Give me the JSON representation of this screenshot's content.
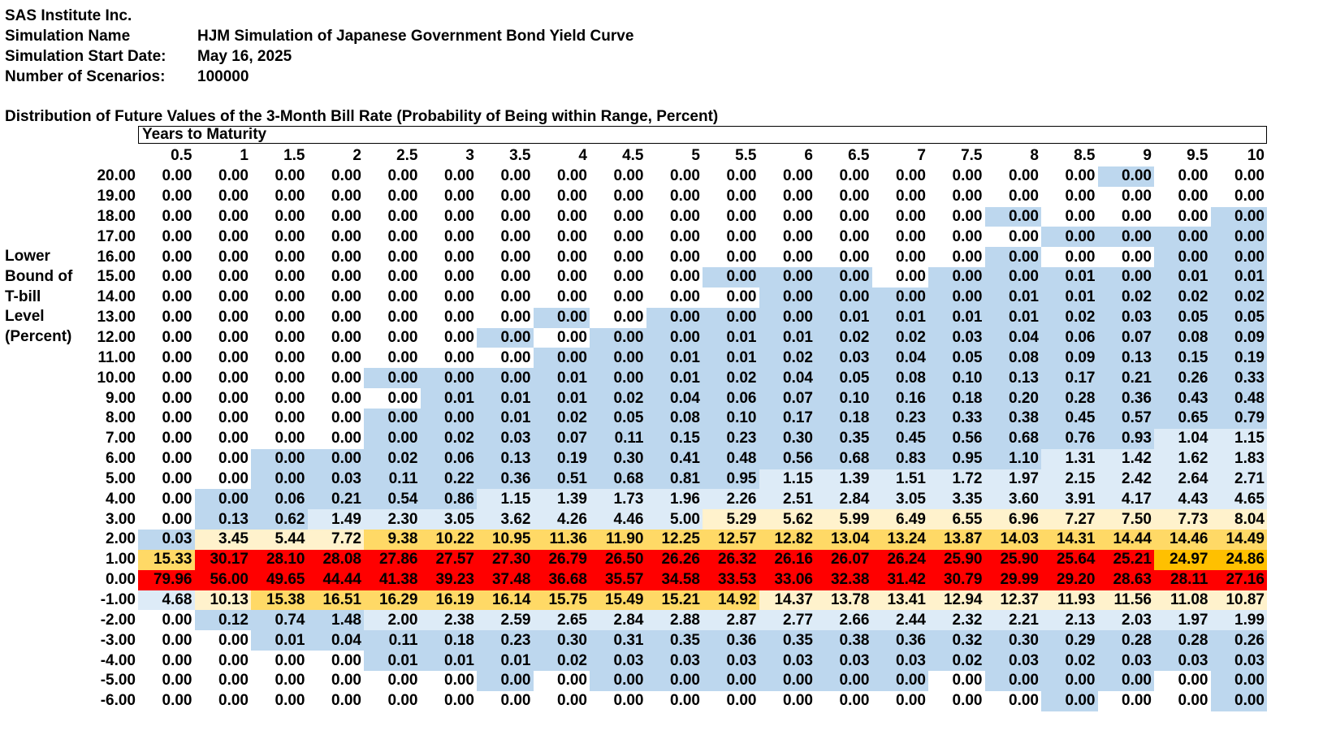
{
  "header": {
    "company": "SAS Institute Inc.",
    "sim_name_label": "Simulation Name",
    "sim_name": "HJM Simulation of Japanese Government Bond Yield Curve",
    "start_date_label": "Simulation Start Date:",
    "start_date": "May 16, 2025",
    "scenarios_label": "Number of Scenarios:",
    "scenarios": "100000"
  },
  "table_title": "Distribution of Future Values of the 3-Month Bill Rate (Probability of Being within Range, Percent)",
  "years_label": "Years to Maturity",
  "side_label": [
    "Lower",
    "Bound of",
    "T-bill",
    "Level",
    "(Percent)"
  ],
  "colors": {
    "blue": "#bdd7ee",
    "lightblue": "#ddebf7",
    "paleyellow": "#fff2cc",
    "gold": "#ffd966",
    "orange": "#ffc000",
    "red": "#ff0000",
    "white": "#ffffff"
  },
  "chart_data": {
    "type": "table",
    "columns": [
      "0.5",
      "1",
      "1.5",
      "2",
      "2.5",
      "3",
      "3.5",
      "4",
      "4.5",
      "5",
      "5.5",
      "6",
      "6.5",
      "7",
      "7.5",
      "8",
      "8.5",
      "9",
      "9.5",
      "10"
    ],
    "rows": [
      {
        "label": "20.00",
        "values": [
          "0.00",
          "0.00",
          "0.00",
          "0.00",
          "0.00",
          "0.00",
          "0.00",
          "0.00",
          "0.00",
          "0.00",
          "0.00",
          "0.00",
          "0.00",
          "0.00",
          "0.00",
          "0.00",
          "0.00",
          "0.00",
          "0.00",
          "0.00"
        ],
        "shade": "wwwwwwwwwwwwwwwwwbww"
      },
      {
        "label": "19.00",
        "values": [
          "0.00",
          "0.00",
          "0.00",
          "0.00",
          "0.00",
          "0.00",
          "0.00",
          "0.00",
          "0.00",
          "0.00",
          "0.00",
          "0.00",
          "0.00",
          "0.00",
          "0.00",
          "0.00",
          "0.00",
          "0.00",
          "0.00",
          "0.00"
        ],
        "shade": "wwwwwwwwwwwwwwwwwwww"
      },
      {
        "label": "18.00",
        "values": [
          "0.00",
          "0.00",
          "0.00",
          "0.00",
          "0.00",
          "0.00",
          "0.00",
          "0.00",
          "0.00",
          "0.00",
          "0.00",
          "0.00",
          "0.00",
          "0.00",
          "0.00",
          "0.00",
          "0.00",
          "0.00",
          "0.00",
          "0.00"
        ],
        "shade": "wwwwwwwwwwwwwwwbwwwb"
      },
      {
        "label": "17.00",
        "values": [
          "0.00",
          "0.00",
          "0.00",
          "0.00",
          "0.00",
          "0.00",
          "0.00",
          "0.00",
          "0.00",
          "0.00",
          "0.00",
          "0.00",
          "0.00",
          "0.00",
          "0.00",
          "0.00",
          "0.00",
          "0.00",
          "0.00",
          "0.00"
        ],
        "shade": "wwwwwwwwwwwwwwwwbbbb"
      },
      {
        "label": "16.00",
        "values": [
          "0.00",
          "0.00",
          "0.00",
          "0.00",
          "0.00",
          "0.00",
          "0.00",
          "0.00",
          "0.00",
          "0.00",
          "0.00",
          "0.00",
          "0.00",
          "0.00",
          "0.00",
          "0.00",
          "0.00",
          "0.00",
          "0.00",
          "0.00"
        ],
        "shade": "wwwwwwwwwwwwwwwbwwbb"
      },
      {
        "label": "15.00",
        "values": [
          "0.00",
          "0.00",
          "0.00",
          "0.00",
          "0.00",
          "0.00",
          "0.00",
          "0.00",
          "0.00",
          "0.00",
          "0.00",
          "0.00",
          "0.00",
          "0.00",
          "0.00",
          "0.00",
          "0.01",
          "0.00",
          "0.01",
          "0.01"
        ],
        "shade": "wwwwwwwwwwbbbwbbbbbb"
      },
      {
        "label": "14.00",
        "values": [
          "0.00",
          "0.00",
          "0.00",
          "0.00",
          "0.00",
          "0.00",
          "0.00",
          "0.00",
          "0.00",
          "0.00",
          "0.00",
          "0.00",
          "0.00",
          "0.00",
          "0.00",
          "0.01",
          "0.01",
          "0.02",
          "0.02",
          "0.02"
        ],
        "shade": "wwwwwwwwwwwbbbbbbbbb"
      },
      {
        "label": "13.00",
        "values": [
          "0.00",
          "0.00",
          "0.00",
          "0.00",
          "0.00",
          "0.00",
          "0.00",
          "0.00",
          "0.00",
          "0.00",
          "0.00",
          "0.00",
          "0.01",
          "0.01",
          "0.01",
          "0.01",
          "0.02",
          "0.03",
          "0.05",
          "0.05"
        ],
        "shade": "wwwwwwwbwbbbbbbbbbbb"
      },
      {
        "label": "12.00",
        "values": [
          "0.00",
          "0.00",
          "0.00",
          "0.00",
          "0.00",
          "0.00",
          "0.00",
          "0.00",
          "0.00",
          "0.00",
          "0.01",
          "0.01",
          "0.02",
          "0.02",
          "0.03",
          "0.04",
          "0.06",
          "0.07",
          "0.08",
          "0.09"
        ],
        "shade": "wwwwwwbwbbbbbbbbbbbb"
      },
      {
        "label": "11.00",
        "values": [
          "0.00",
          "0.00",
          "0.00",
          "0.00",
          "0.00",
          "0.00",
          "0.00",
          "0.00",
          "0.00",
          "0.01",
          "0.01",
          "0.02",
          "0.03",
          "0.04",
          "0.05",
          "0.08",
          "0.09",
          "0.13",
          "0.15",
          "0.19"
        ],
        "shade": "wwwwwwwbbbbbbbbbbbbb"
      },
      {
        "label": "10.00",
        "values": [
          "0.00",
          "0.00",
          "0.00",
          "0.00",
          "0.00",
          "0.00",
          "0.00",
          "0.01",
          "0.00",
          "0.01",
          "0.02",
          "0.04",
          "0.05",
          "0.08",
          "0.10",
          "0.13",
          "0.17",
          "0.21",
          "0.26",
          "0.33"
        ],
        "shade": "wwwwbbbbbbbbbbbbbbbb"
      },
      {
        "label": "9.00",
        "values": [
          "0.00",
          "0.00",
          "0.00",
          "0.00",
          "0.00",
          "0.01",
          "0.01",
          "0.01",
          "0.02",
          "0.04",
          "0.06",
          "0.07",
          "0.10",
          "0.16",
          "0.18",
          "0.20",
          "0.28",
          "0.36",
          "0.43",
          "0.48"
        ],
        "shade": "wwwwwbbbbbbbbbbbbbbb"
      },
      {
        "label": "8.00",
        "values": [
          "0.00",
          "0.00",
          "0.00",
          "0.00",
          "0.00",
          "0.00",
          "0.01",
          "0.02",
          "0.05",
          "0.08",
          "0.10",
          "0.17",
          "0.18",
          "0.23",
          "0.33",
          "0.38",
          "0.45",
          "0.57",
          "0.65",
          "0.79"
        ],
        "shade": "wwwwbbbbbbbbbbbbbbbb"
      },
      {
        "label": "7.00",
        "values": [
          "0.00",
          "0.00",
          "0.00",
          "0.00",
          "0.00",
          "0.02",
          "0.03",
          "0.07",
          "0.11",
          "0.15",
          "0.23",
          "0.30",
          "0.35",
          "0.45",
          "0.56",
          "0.68",
          "0.76",
          "0.93",
          "1.04",
          "1.15"
        ],
        "shade": "wwwwbbbbbbbbbbbbbbll"
      },
      {
        "label": "6.00",
        "values": [
          "0.00",
          "0.00",
          "0.00",
          "0.00",
          "0.02",
          "0.06",
          "0.13",
          "0.19",
          "0.30",
          "0.41",
          "0.48",
          "0.56",
          "0.68",
          "0.83",
          "0.95",
          "1.10",
          "1.31",
          "1.42",
          "1.62",
          "1.83"
        ],
        "shade": "wwbbbbbbbbbbbbbbllll"
      },
      {
        "label": "5.00",
        "values": [
          "0.00",
          "0.00",
          "0.00",
          "0.03",
          "0.11",
          "0.22",
          "0.36",
          "0.51",
          "0.68",
          "0.81",
          "0.95",
          "1.15",
          "1.39",
          "1.51",
          "1.72",
          "1.97",
          "2.15",
          "2.42",
          "2.64",
          "2.71"
        ],
        "shade": "wwbbbbbbbbblllllllll"
      },
      {
        "label": "4.00",
        "values": [
          "0.00",
          "0.00",
          "0.06",
          "0.21",
          "0.54",
          "0.86",
          "1.15",
          "1.39",
          "1.73",
          "1.96",
          "2.26",
          "2.51",
          "2.84",
          "3.05",
          "3.35",
          "3.60",
          "3.91",
          "4.17",
          "4.43",
          "4.65"
        ],
        "shade": "wbbbbbllllllllllllll"
      },
      {
        "label": "3.00",
        "values": [
          "0.00",
          "0.13",
          "0.62",
          "1.49",
          "2.30",
          "3.05",
          "3.62",
          "4.26",
          "4.46",
          "5.00",
          "5.29",
          "5.62",
          "5.99",
          "6.49",
          "6.55",
          "6.96",
          "7.27",
          "7.50",
          "7.73",
          "8.04"
        ],
        "shade": "wbblllllllpppppppppp"
      },
      {
        "label": "2.00",
        "values": [
          "0.03",
          "3.45",
          "5.44",
          "7.72",
          "9.38",
          "10.22",
          "10.95",
          "11.36",
          "11.90",
          "12.25",
          "12.57",
          "12.82",
          "13.04",
          "13.24",
          "13.87",
          "14.03",
          "14.31",
          "14.44",
          "14.46",
          "14.49"
        ],
        "shade": "bpppgggggggggggggggg"
      },
      {
        "label": "1.00",
        "values": [
          "15.33",
          "30.17",
          "28.10",
          "28.08",
          "27.86",
          "27.57",
          "27.30",
          "26.79",
          "26.50",
          "26.26",
          "26.32",
          "26.16",
          "26.07",
          "26.24",
          "25.90",
          "25.90",
          "25.64",
          "25.21",
          "24.97",
          "24.86"
        ],
        "shade": "grrrrrrrrrrrrrrrrroo"
      },
      {
        "label": "0.00",
        "values": [
          "79.96",
          "56.00",
          "49.65",
          "44.44",
          "41.38",
          "39.23",
          "37.48",
          "36.68",
          "35.57",
          "34.58",
          "33.53",
          "33.06",
          "32.38",
          "31.42",
          "30.79",
          "29.99",
          "29.20",
          "28.63",
          "28.11",
          "27.16"
        ],
        "shade": "rrrrrrrrrrrrrrrrrrrr"
      },
      {
        "label": "-1.00",
        "values": [
          "4.68",
          "10.13",
          "15.38",
          "16.51",
          "16.29",
          "16.19",
          "16.14",
          "15.75",
          "15.49",
          "15.21",
          "14.92",
          "14.37",
          "13.78",
          "13.41",
          "12.94",
          "12.37",
          "11.93",
          "11.56",
          "11.08",
          "10.87"
        ],
        "shade": "lpgggggggggppppppppp"
      },
      {
        "label": "-2.00",
        "values": [
          "0.00",
          "0.12",
          "0.74",
          "1.48",
          "2.00",
          "2.38",
          "2.59",
          "2.65",
          "2.84",
          "2.88",
          "2.87",
          "2.77",
          "2.66",
          "2.44",
          "2.32",
          "2.21",
          "2.13",
          "2.03",
          "1.97",
          "1.99"
        ],
        "shade": "wbbbllllllllllllllll"
      },
      {
        "label": "-3.00",
        "values": [
          "0.00",
          "0.00",
          "0.01",
          "0.04",
          "0.11",
          "0.18",
          "0.23",
          "0.30",
          "0.31",
          "0.35",
          "0.36",
          "0.35",
          "0.38",
          "0.36",
          "0.32",
          "0.30",
          "0.29",
          "0.28",
          "0.28",
          "0.26"
        ],
        "shade": "wwbbbbbbbbbbbbbbbbbb"
      },
      {
        "label": "-4.00",
        "values": [
          "0.00",
          "0.00",
          "0.00",
          "0.00",
          "0.01",
          "0.01",
          "0.01",
          "0.02",
          "0.03",
          "0.03",
          "0.03",
          "0.03",
          "0.03",
          "0.03",
          "0.02",
          "0.03",
          "0.02",
          "0.03",
          "0.03",
          "0.03"
        ],
        "shade": "wwwwbbbbbbbbbbbbbbbb"
      },
      {
        "label": "-5.00",
        "values": [
          "0.00",
          "0.00",
          "0.00",
          "0.00",
          "0.00",
          "0.00",
          "0.00",
          "0.00",
          "0.00",
          "0.00",
          "0.00",
          "0.00",
          "0.00",
          "0.00",
          "0.00",
          "0.00",
          "0.00",
          "0.00",
          "0.00",
          "0.00"
        ],
        "shade": "wwwwwwbwbbbbbbwbbbwb"
      },
      {
        "label": "-6.00",
        "values": [
          "0.00",
          "0.00",
          "0.00",
          "0.00",
          "0.00",
          "0.00",
          "0.00",
          "0.00",
          "0.00",
          "0.00",
          "0.00",
          "0.00",
          "0.00",
          "0.00",
          "0.00",
          "0.00",
          "0.00",
          "0.00",
          "0.00",
          "0.00"
        ],
        "shade": "wwwwwwwwwwwwwwwwbwwb"
      }
    ]
  }
}
